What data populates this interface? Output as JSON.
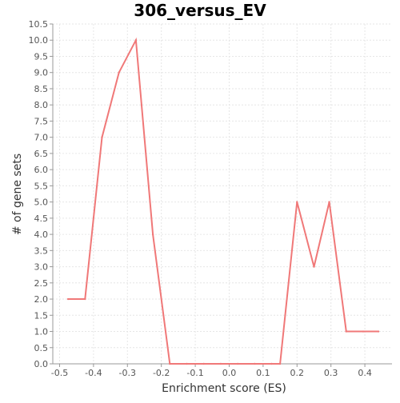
{
  "chart_data": {
    "type": "line",
    "title": "306_versus_EV",
    "xlabel": "Enrichment score (ES)",
    "ylabel": "# of gene sets",
    "xlim": [
      -0.52,
      0.48
    ],
    "ylim": [
      0.0,
      10.5
    ],
    "x_ticks": [
      -0.5,
      -0.4,
      -0.3,
      -0.2,
      -0.1,
      0.0,
      0.1,
      0.2,
      0.3,
      0.4
    ],
    "x_tick_labels": [
      "-0.5",
      "-0.4",
      "-0.3",
      "-0.2",
      "-0.1",
      "0.0",
      "0.1",
      "0.2",
      "0.3",
      "0.4"
    ],
    "y_ticks": [
      0.0,
      0.5,
      1.0,
      1.5,
      2.0,
      2.5,
      3.0,
      3.5,
      4.0,
      4.5,
      5.0,
      5.5,
      6.0,
      6.5,
      7.0,
      7.5,
      8.0,
      8.5,
      9.0,
      9.5,
      10.0,
      10.5
    ],
    "y_tick_labels": [
      "0.0",
      "0.5",
      "1.0",
      "1.5",
      "2.0",
      "2.5",
      "3.0",
      "3.5",
      "4.0",
      "4.5",
      "5.0",
      "5.5",
      "6.0",
      "6.5",
      "7.0",
      "7.5",
      "8.0",
      "8.5",
      "9.0",
      "9.5",
      "10.0",
      "10.5"
    ],
    "grid": true,
    "series": [
      {
        "color": "#f07878",
        "x": [
          -0.475,
          -0.425,
          -0.375,
          -0.325,
          -0.275,
          -0.225,
          -0.175,
          -0.125,
          -0.075,
          -0.025,
          0.025,
          0.075,
          0.125,
          0.15,
          0.2,
          0.25,
          0.295,
          0.345,
          0.395,
          0.44
        ],
        "y": [
          2,
          2,
          7,
          9,
          10,
          4,
          0,
          0,
          0,
          0,
          0,
          0,
          0,
          0,
          5,
          3,
          5,
          1,
          1,
          1
        ]
      }
    ]
  }
}
